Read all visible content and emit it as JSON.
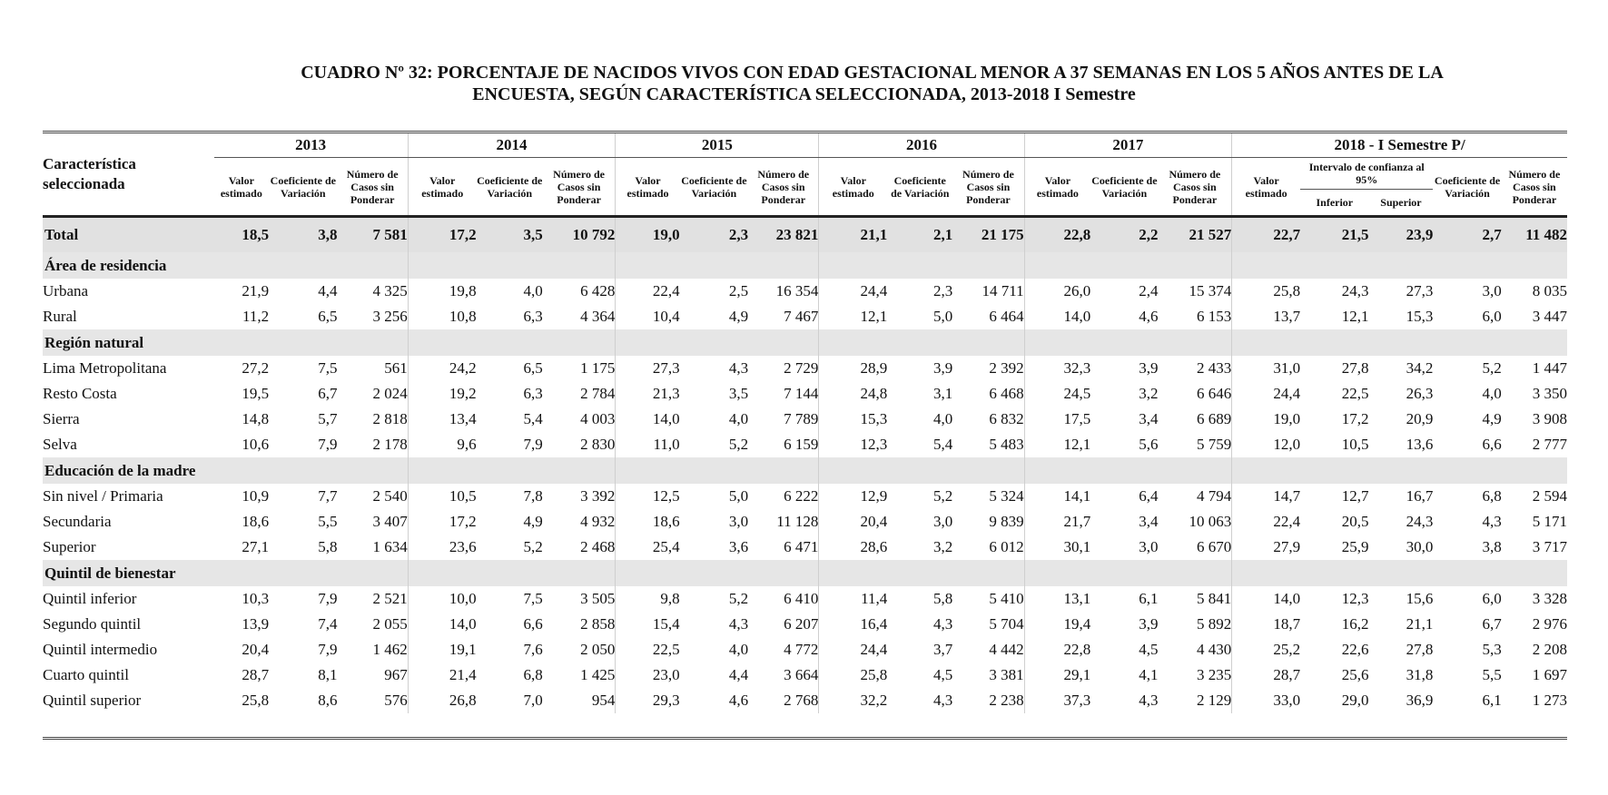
{
  "title": {
    "line1": "CUADRO Nº 32: PORCENTAJE DE NACIDOS VIVOS CON EDAD GESTACIONAL MENOR A 37 SEMANAS EN LOS 5 AÑOS ANTES DE LA",
    "line2": "ENCUESTA, SEGÚN CARACTERÍSTICA SELECCIONADA, 2013-2018 I Semestre"
  },
  "header": {
    "characteristic": "Característica seleccionada",
    "years": [
      "2013",
      "2014",
      "2015",
      "2016",
      "2017",
      "2018 - I Semestre P/"
    ],
    "col_valor": "Valor estimado",
    "col_coef": "Coeficiente de Variación",
    "col_casos_2013": "Número de Casos sin Ponderar",
    "col_casos": "Número de Casos sin Ponderar",
    "ci_label": "Intervalo de confianza al 95%",
    "ci_inferior": "Inferior",
    "ci_superior": "Superior"
  },
  "total": {
    "label": "Total",
    "values": [
      "18,5",
      "3,8",
      "7 581",
      "17,2",
      "3,5",
      "10 792",
      "19,0",
      "2,3",
      "23 821",
      "21,1",
      "2,1",
      "21 175",
      "22,8",
      "2,2",
      "21 527",
      "22,7",
      "21,5",
      "23,9",
      "2,7",
      "11 482"
    ]
  },
  "sections": [
    {
      "title": "Área de residencia",
      "rows": [
        {
          "label": "Urbana",
          "values": [
            "21,9",
            "4,4",
            "4 325",
            "19,8",
            "4,0",
            "6 428",
            "22,4",
            "2,5",
            "16 354",
            "24,4",
            "2,3",
            "14 711",
            "26,0",
            "2,4",
            "15 374",
            "25,8",
            "24,3",
            "27,3",
            "3,0",
            "8 035"
          ]
        },
        {
          "label": "Rural",
          "values": [
            "11,2",
            "6,5",
            "3 256",
            "10,8",
            "6,3",
            "4 364",
            "10,4",
            "4,9",
            "7 467",
            "12,1",
            "5,0",
            "6 464",
            "14,0",
            "4,6",
            "6 153",
            "13,7",
            "12,1",
            "15,3",
            "6,0",
            "3 447"
          ]
        }
      ]
    },
    {
      "title": "Región natural",
      "rows": [
        {
          "label": "Lima Metropolitana",
          "values": [
            "27,2",
            "7,5",
            "561",
            "24,2",
            "6,5",
            "1 175",
            "27,3",
            "4,3",
            "2 729",
            "28,9",
            "3,9",
            "2 392",
            "32,3",
            "3,9",
            "2 433",
            "31,0",
            "27,8",
            "34,2",
            "5,2",
            "1 447"
          ]
        },
        {
          "label": "Resto Costa",
          "values": [
            "19,5",
            "6,7",
            "2 024",
            "19,2",
            "6,3",
            "2 784",
            "21,3",
            "3,5",
            "7 144",
            "24,8",
            "3,1",
            "6 468",
            "24,5",
            "3,2",
            "6 646",
            "24,4",
            "22,5",
            "26,3",
            "4,0",
            "3 350"
          ]
        },
        {
          "label": "Sierra",
          "values": [
            "14,8",
            "5,7",
            "2 818",
            "13,4",
            "5,4",
            "4 003",
            "14,0",
            "4,0",
            "7 789",
            "15,3",
            "4,0",
            "6 832",
            "17,5",
            "3,4",
            "6 689",
            "19,0",
            "17,2",
            "20,9",
            "4,9",
            "3 908"
          ]
        },
        {
          "label": "Selva",
          "values": [
            "10,6",
            "7,9",
            "2 178",
            "9,6",
            "7,9",
            "2 830",
            "11,0",
            "5,2",
            "6 159",
            "12,3",
            "5,4",
            "5 483",
            "12,1",
            "5,6",
            "5 759",
            "12,0",
            "10,5",
            "13,6",
            "6,6",
            "2 777"
          ]
        }
      ]
    },
    {
      "title": "Educación de la madre",
      "rows": [
        {
          "label": "Sin nivel / Primaria",
          "values": [
            "10,9",
            "7,7",
            "2 540",
            "10,5",
            "7,8",
            "3 392",
            "12,5",
            "5,0",
            "6 222",
            "12,9",
            "5,2",
            "5 324",
            "14,1",
            "6,4",
            "4 794",
            "14,7",
            "12,7",
            "16,7",
            "6,8",
            "2 594"
          ]
        },
        {
          "label": "Secundaria",
          "values": [
            "18,6",
            "5,5",
            "3 407",
            "17,2",
            "4,9",
            "4 932",
            "18,6",
            "3,0",
            "11 128",
            "20,4",
            "3,0",
            "9 839",
            "21,7",
            "3,4",
            "10 063",
            "22,4",
            "20,5",
            "24,3",
            "4,3",
            "5 171"
          ]
        },
        {
          "label": "Superior",
          "values": [
            "27,1",
            "5,8",
            "1 634",
            "23,6",
            "5,2",
            "2 468",
            "25,4",
            "3,6",
            "6 471",
            "28,6",
            "3,2",
            "6 012",
            "30,1",
            "3,0",
            "6 670",
            "27,9",
            "25,9",
            "30,0",
            "3,8",
            "3 717"
          ]
        }
      ]
    },
    {
      "title": "Quintil de bienestar",
      "rows": [
        {
          "label": "Quintil inferior",
          "values": [
            "10,3",
            "7,9",
            "2 521",
            "10,0",
            "7,5",
            "3 505",
            "9,8",
            "5,2",
            "6 410",
            "11,4",
            "5,8",
            "5 410",
            "13,1",
            "6,1",
            "5 841",
            "14,0",
            "12,3",
            "15,6",
            "6,0",
            "3 328"
          ]
        },
        {
          "label": "Segundo quintil",
          "values": [
            "13,9",
            "7,4",
            "2 055",
            "14,0",
            "6,6",
            "2 858",
            "15,4",
            "4,3",
            "6 207",
            "16,4",
            "4,3",
            "5 704",
            "19,4",
            "3,9",
            "5 892",
            "18,7",
            "16,2",
            "21,1",
            "6,7",
            "2 976"
          ]
        },
        {
          "label": "Quintil intermedio",
          "values": [
            "20,4",
            "7,9",
            "1 462",
            "19,1",
            "7,6",
            "2 050",
            "22,5",
            "4,0",
            "4 772",
            "24,4",
            "3,7",
            "4 442",
            "22,8",
            "4,5",
            "4 430",
            "25,2",
            "22,6",
            "27,8",
            "5,3",
            "2 208"
          ]
        },
        {
          "label": "Cuarto quintil",
          "values": [
            "28,7",
            "8,1",
            "967",
            "21,4",
            "6,8",
            "1 425",
            "23,0",
            "4,4",
            "3 664",
            "25,8",
            "4,5",
            "3 381",
            "29,1",
            "4,1",
            "3 235",
            "28,7",
            "25,6",
            "31,8",
            "5,5",
            "1 697"
          ]
        },
        {
          "label": "Quintil superior",
          "values": [
            "25,8",
            "8,6",
            "576",
            "26,8",
            "7,0",
            "954",
            "29,3",
            "4,6",
            "2 768",
            "32,2",
            "4,3",
            "2 238",
            "37,3",
            "4,3",
            "2 129",
            "33,0",
            "29,0",
            "36,9",
            "6,1",
            "1 273"
          ]
        }
      ]
    }
  ]
}
